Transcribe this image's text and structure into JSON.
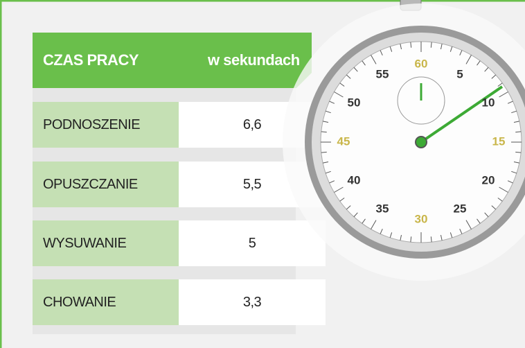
{
  "header": {
    "title": "CZAS PRACY",
    "unit": "w sekundach"
  },
  "table": {
    "rows": [
      [
        "PODNOSZENIE",
        "6,6"
      ],
      [
        "OPUSZCZANIE",
        "5,5"
      ],
      [
        "WYSUWANIE",
        "5"
      ],
      [
        "CHOWANIE",
        "3,3"
      ]
    ]
  },
  "stopwatch": {
    "dial_numbers": [
      "60",
      "5",
      "10",
      "15",
      "20",
      "25",
      "30",
      "35",
      "40",
      "45",
      "50",
      "55"
    ]
  }
}
